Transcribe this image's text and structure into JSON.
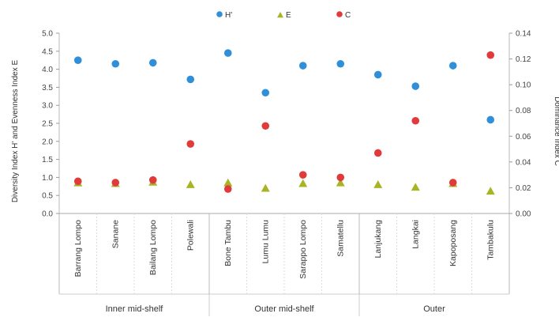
{
  "chart_data": {
    "type": "scatter",
    "categories": [
      "Barrang Lompo",
      "Sanane",
      "Bailang Lompo",
      "Polewali",
      "Bone Tambu",
      "Lumu Lumu",
      "Sarappo Lompo",
      "Samatellu",
      "Lanjukang",
      "Langkai",
      "Kapoposang",
      "Tambakulu"
    ],
    "groups": [
      {
        "label": "Inner mid-shelf",
        "count": 4
      },
      {
        "label": "Outer mid-shelf",
        "count": 4
      },
      {
        "label": "Outer",
        "count": 4
      }
    ],
    "series": [
      {
        "name": "H'",
        "axis": "left",
        "color": "#2f8fd8",
        "marker": "circle",
        "values": [
          4.25,
          4.15,
          4.18,
          3.72,
          4.45,
          3.35,
          4.1,
          4.15,
          3.85,
          3.53,
          4.1,
          2.6
        ]
      },
      {
        "name": "E",
        "axis": "left",
        "color": "#a9b423",
        "marker": "triangle",
        "values": [
          0.85,
          0.83,
          0.87,
          0.8,
          0.85,
          0.7,
          0.83,
          0.85,
          0.8,
          0.73,
          0.83,
          0.62
        ]
      },
      {
        "name": "C",
        "axis": "right",
        "color": "#e03a3a",
        "marker": "circle",
        "values": [
          0.025,
          0.024,
          0.026,
          0.054,
          0.019,
          0.068,
          0.03,
          0.028,
          0.047,
          0.072,
          0.024,
          0.123
        ]
      }
    ],
    "ylabel_left": "Diversity Index H' and Evenness Index E",
    "ylabel_right": "Dominance Index C",
    "ylim_left": [
      0,
      5
    ],
    "yticks_left": [
      "0.0",
      "0.5",
      "1.0",
      "1.5",
      "2.0",
      "2.5",
      "3.0",
      "3.5",
      "4.0",
      "4.5",
      "5.0"
    ],
    "ylim_right": [
      0,
      0.14
    ],
    "yticks_right": [
      "0.00",
      "0.02",
      "0.04",
      "0.06",
      "0.08",
      "0.10",
      "0.12",
      "0.14"
    ],
    "grid": false,
    "legend_position": "top-center"
  }
}
